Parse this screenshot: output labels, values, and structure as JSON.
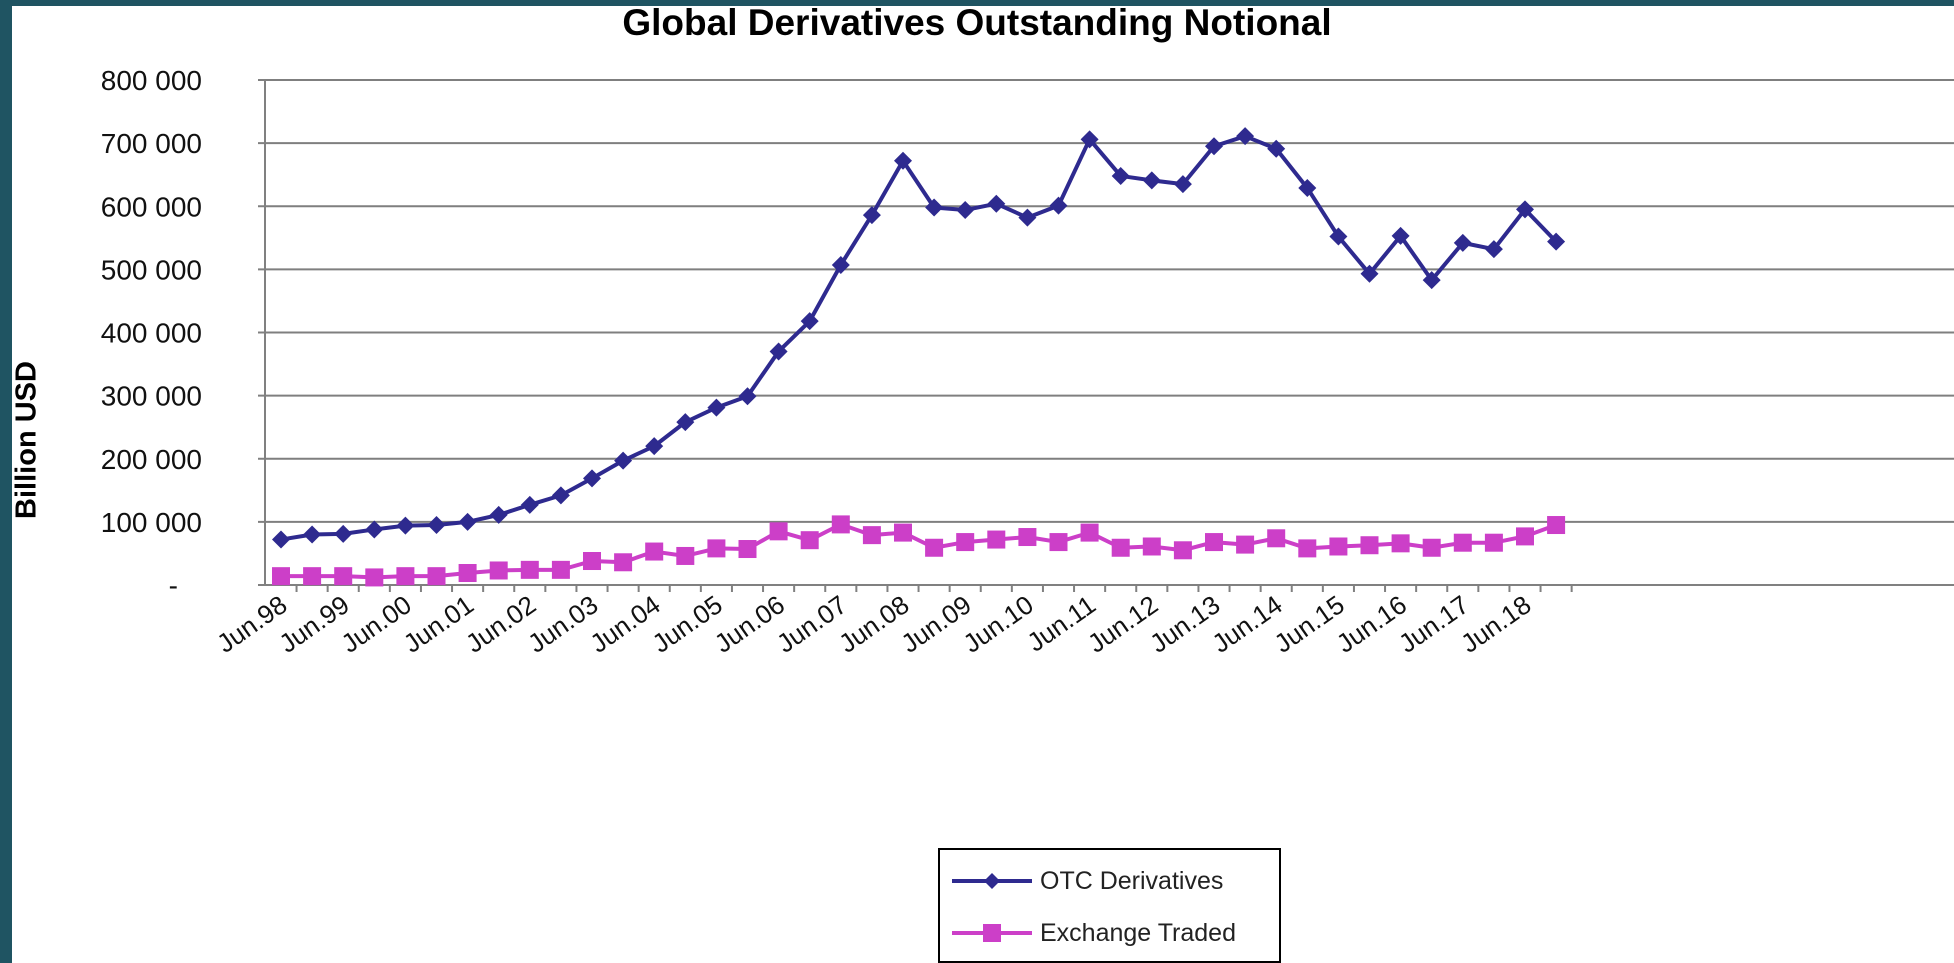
{
  "chart_data": {
    "type": "line",
    "title": "Global Derivatives Outstanding Notional",
    "ylabel": "Billion USD",
    "xlabel": "",
    "ylim": [
      0,
      800000
    ],
    "y_ticks": [
      "800 000",
      "700 000",
      "600 000",
      "500 000",
      "400 000",
      "300 000",
      "200 000",
      "100 000",
      "-"
    ],
    "y_tick_values": [
      800000,
      700000,
      600000,
      500000,
      400000,
      300000,
      200000,
      100000,
      0
    ],
    "x_tick_labels": [
      "Jun.98",
      "Jun.99",
      "Jun.00",
      "Jun.01",
      "Jun.02",
      "Jun.03",
      "Jun.04",
      "Jun.05",
      "Jun.06",
      "Jun.07",
      "Jun.08",
      "Jun.09",
      "Jun.10",
      "Jun.11",
      "Jun.12",
      "Jun.13",
      "Jun.14",
      "Jun.15",
      "Jun.16",
      "Jun.17",
      "Jun.18"
    ],
    "x": [
      "Jun.98",
      "Dec.98",
      "Jun.99",
      "Dec.99",
      "Jun.00",
      "Dec.00",
      "Jun.01",
      "Dec.01",
      "Jun.02",
      "Dec.02",
      "Jun.03",
      "Dec.03",
      "Jun.04",
      "Dec.04",
      "Jun.05",
      "Dec.05",
      "Jun.06",
      "Dec.06",
      "Jun.07",
      "Dec.07",
      "Jun.08",
      "Dec.08",
      "Jun.09",
      "Dec.09",
      "Jun.10",
      "Dec.10",
      "Jun.11",
      "Dec.11",
      "Jun.12",
      "Dec.12",
      "Jun.13",
      "Dec.13",
      "Jun.14",
      "Dec.14",
      "Jun.15",
      "Dec.15",
      "Jun.16",
      "Dec.16",
      "Jun.17",
      "Dec.17",
      "Jun.18",
      "Dec.18"
    ],
    "grid": true,
    "legend_position": "bottom",
    "series": [
      {
        "name": "OTC Derivatives",
        "color": "#2e2a8f",
        "marker": "diamond",
        "values": [
          72000,
          80000,
          81000,
          88000,
          94000,
          95000,
          100000,
          111000,
          127000,
          142000,
          169000,
          197000,
          220000,
          258000,
          281000,
          299000,
          370000,
          418000,
          507000,
          586000,
          672000,
          598000,
          594000,
          604000,
          582000,
          601000,
          706000,
          648000,
          641000,
          635000,
          695000,
          711000,
          691000,
          629000,
          552000,
          493000,
          553000,
          483000,
          542000,
          532000,
          595000,
          544000
        ]
      },
      {
        "name": "Exchange Traded",
        "color": "#cc3fc8",
        "marker": "square",
        "values": [
          14000,
          14000,
          14000,
          12000,
          14000,
          14000,
          19000,
          23000,
          24000,
          24000,
          38000,
          36000,
          53000,
          46000,
          58000,
          57000,
          85000,
          71000,
          96000,
          79000,
          83000,
          59000,
          68000,
          72000,
          76000,
          68000,
          83000,
          59000,
          61000,
          55000,
          68000,
          64000,
          74000,
          58000,
          61000,
          63000,
          66000,
          59000,
          67000,
          67000,
          77000,
          95000
        ]
      }
    ]
  }
}
